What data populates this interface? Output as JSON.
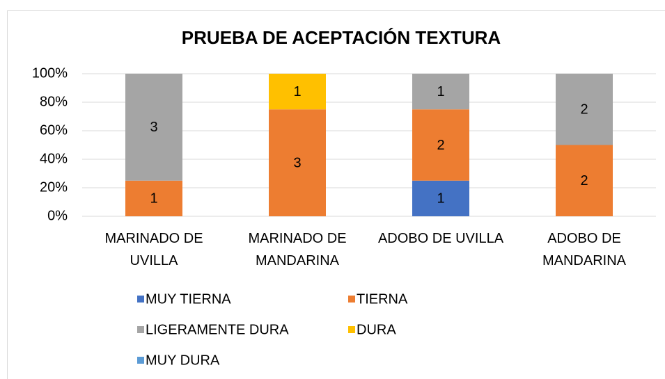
{
  "chart_data": {
    "type": "bar",
    "stacking": "percent",
    "title": "PRUEBA DE ACEPTACIÓN TEXTURA",
    "categories": [
      "MARINADO DE UVILLA",
      "MARINADO DE MANDARINA",
      "ADOBO DE UVILLA",
      "ADOBO DE MANDARINA"
    ],
    "series": [
      {
        "name": "MUY TIERNA",
        "color": "#4472c4",
        "values": [
          0,
          0,
          1,
          0
        ]
      },
      {
        "name": "TIERNA",
        "color": "#ed7d31",
        "values": [
          1,
          3,
          2,
          2
        ]
      },
      {
        "name": "LIGERAMENTE DURA",
        "color": "#a5a5a5",
        "values": [
          3,
          0,
          1,
          2
        ]
      },
      {
        "name": "DURA",
        "color": "#ffc000",
        "values": [
          0,
          1,
          0,
          0
        ]
      },
      {
        "name": "MUY DURA",
        "color": "#5b9bd5",
        "values": [
          0,
          0,
          0,
          0
        ]
      }
    ],
    "ylim": [
      0,
      100
    ],
    "yticks": [
      {
        "value": 0,
        "label": "0%"
      },
      {
        "value": 20,
        "label": "20%"
      },
      {
        "value": 40,
        "label": "40%"
      },
      {
        "value": 60,
        "label": "60%"
      },
      {
        "value": 80,
        "label": "80%"
      },
      {
        "value": 100,
        "label": "100%"
      }
    ],
    "grid": true,
    "legend": "bottom"
  }
}
